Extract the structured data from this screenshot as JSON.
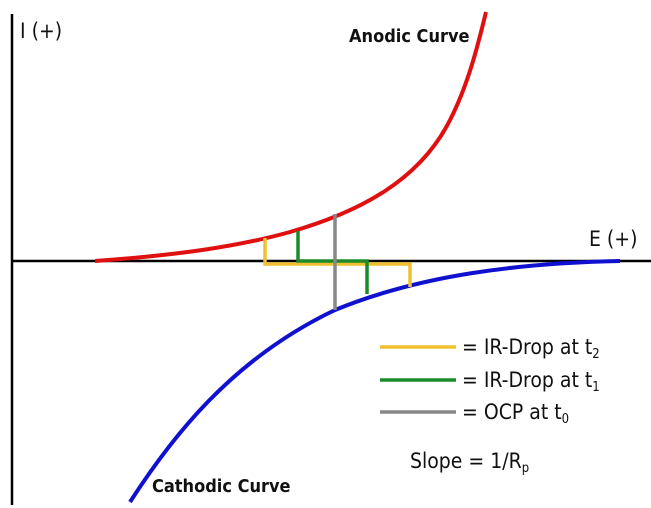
{
  "axes": {
    "y_label": "I (+)",
    "x_label": "E (+)"
  },
  "curves": {
    "anodic": "Anodic Curve",
    "cathodic": "Cathodic Curve"
  },
  "legend": [
    {
      "text": "= IR-Drop at t",
      "subscript": "2"
    },
    {
      "text": "= IR-Drop at t",
      "subscript": "1"
    },
    {
      "text": "= OCP at t",
      "subscript": "0"
    }
  ],
  "slope": {
    "text": "Slope = 1/R",
    "subscript": "p"
  }
}
